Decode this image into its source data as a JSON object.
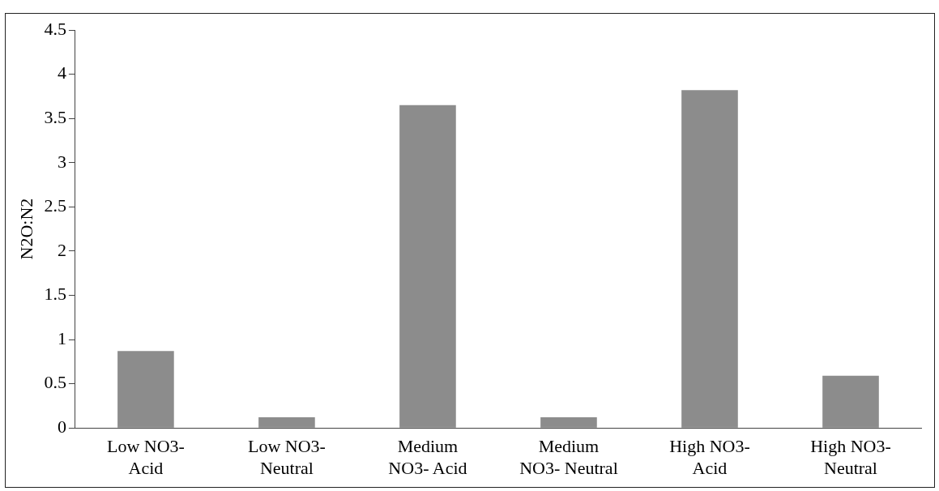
{
  "chart_data": {
    "type": "bar",
    "ylabel": "N2O:N2",
    "categories": [
      "Low NO3- Acid",
      "Low NO3- Neutral",
      "Medium NO3- Acid",
      "Medium NO3- Neutral",
      "High NO3- Acid",
      "High NO3- Neutral"
    ],
    "values": [
      0.87,
      0.12,
      3.65,
      0.12,
      3.82,
      0.59
    ],
    "color": "#8c8c8c",
    "ylim": [
      0,
      4.5
    ],
    "yticks": [
      0,
      0.5,
      1,
      1.5,
      2,
      2.5,
      3,
      3.5,
      4,
      4.5
    ],
    "grid": false,
    "legend": false
  }
}
